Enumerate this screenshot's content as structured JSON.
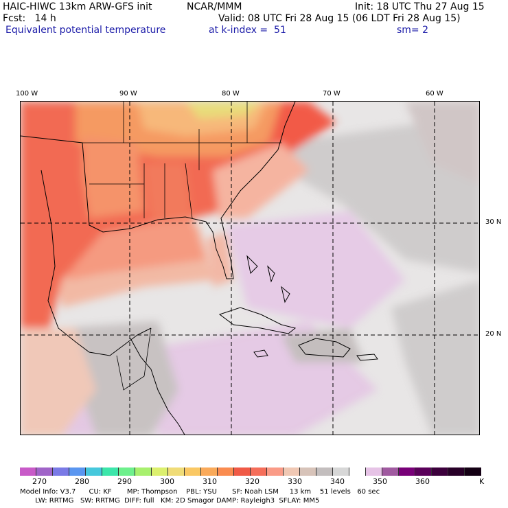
{
  "header": {
    "model": "HAIC-HIWC 13km ARW-GFS init",
    "center": "NCAR/MMM",
    "init": "Init: 18 UTC Thu 27 Aug 15",
    "fcst": "Fcst:   14 h",
    "valid": "Valid: 08 UTC Fri 28 Aug 15 (06 LDT Fri 28 Aug 15)",
    "field": "Equivalent potential temperature",
    "level": "at k-index =  51",
    "smooth": "sm= 2"
  },
  "map": {
    "lon_labels": [
      "100 W",
      "90 W",
      "80 W",
      "70 W",
      "60 W"
    ],
    "lat_labels": [
      "30 N",
      "20 N"
    ]
  },
  "colorbar": {
    "colors": [
      "#c85ac8",
      "#a064c8",
      "#7a7ae6",
      "#5a96f0",
      "#46c8dc",
      "#3ce6aa",
      "#6ef08c",
      "#a8f06e",
      "#dcf06e",
      "#f0dc78",
      "#fac864",
      "#faaa5a",
      "#fa8c50",
      "#f05a46",
      "#f56e5a",
      "#fa9b87",
      "#f0c8b4",
      "#d7c3b9",
      "#c3bebe",
      "#d7d7d7",
      "#ffffff",
      "#e6c3e6",
      "#a05aa0",
      "#780078",
      "#5a005a",
      "#3c003c",
      "#280028",
      "#140014"
    ],
    "tick_labels": [
      "270",
      "280",
      "290",
      "300",
      "310",
      "320",
      "330",
      "340",
      "350",
      "360",
      "K"
    ]
  },
  "footer": {
    "line1": "Model Info: V3.7      CU: KF       MP: Thompson    PBL: YSU       SF: Noah LSM     13 km    51 levels   60 sec",
    "line2": "       LW: RRTMG   SW: RRTMG  DIFF: full   KM: 2D Smagor DAMP: Rayleigh3  SFLAY: MM5"
  }
}
